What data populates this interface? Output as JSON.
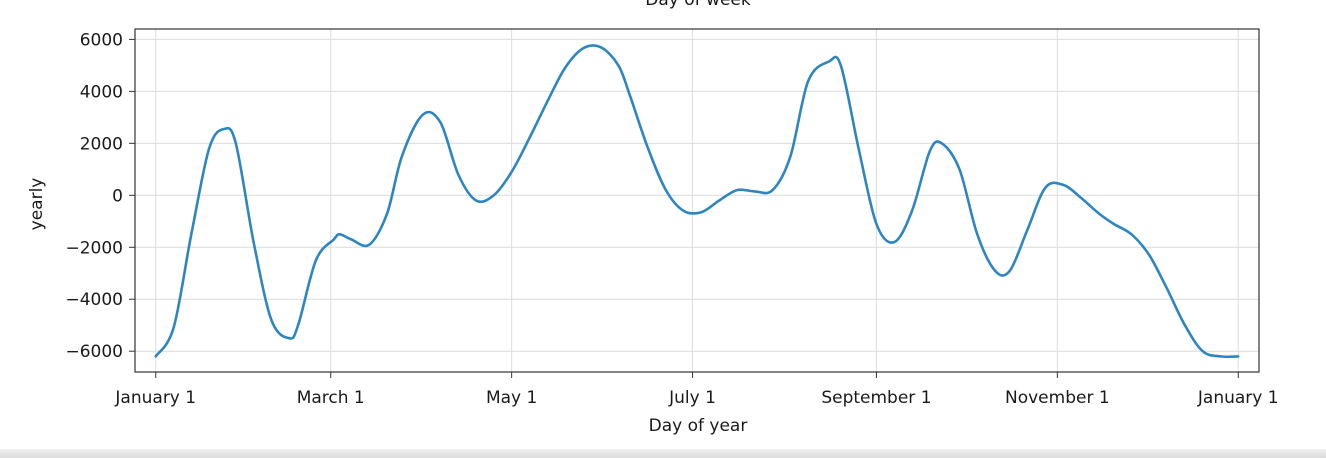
{
  "chart_data": {
    "type": "line",
    "title": "",
    "top_clipped_label": "Day of week",
    "xlabel": "Day of year",
    "ylabel": "yearly",
    "x_unit": "day of year",
    "xlim": [
      -7,
      372
    ],
    "ylim": [
      -6800,
      6400
    ],
    "grid": true,
    "x_ticks": [
      {
        "value": 0,
        "label": "January 1"
      },
      {
        "value": 59,
        "label": "March 1"
      },
      {
        "value": 120,
        "label": "May 1"
      },
      {
        "value": 181,
        "label": "July 1"
      },
      {
        "value": 243,
        "label": "September 1"
      },
      {
        "value": 304,
        "label": "November 1"
      },
      {
        "value": 365,
        "label": "January 1"
      }
    ],
    "y_ticks": [
      {
        "value": 6000,
        "label": "6000"
      },
      {
        "value": 4000,
        "label": "4000"
      },
      {
        "value": 2000,
        "label": "2000"
      },
      {
        "value": 0,
        "label": "0"
      },
      {
        "value": -2000,
        "label": "−2000"
      },
      {
        "value": -4000,
        "label": "−4000"
      },
      {
        "value": -6000,
        "label": "−6000"
      }
    ],
    "series": [
      {
        "color": "#2e86c1",
        "x": [
          0,
          6,
          12,
          18,
          23,
          27,
          33,
          39,
          45,
          48,
          54,
          60,
          62,
          66,
          72,
          78,
          83,
          90,
          96,
          102,
          108,
          114,
          120,
          126,
          132,
          138,
          144,
          150,
          156,
          160,
          166,
          172,
          178,
          184,
          190,
          196,
          202,
          208,
          214,
          220,
          227,
          231,
          237,
          243,
          249,
          255,
          261,
          265,
          271,
          277,
          283,
          288,
          294,
          300,
          306,
          312,
          318,
          323,
          329,
          335,
          341,
          347,
          353,
          359,
          365
        ],
        "values": [
          -6200,
          -5100,
          -1500,
          1800,
          2550,
          2000,
          -1800,
          -4800,
          -5500,
          -5000,
          -2500,
          -1700,
          -1500,
          -1700,
          -1900,
          -700,
          1500,
          3100,
          2800,
          800,
          -200,
          0,
          900,
          2200,
          3600,
          4900,
          5650,
          5700,
          5000,
          3800,
          1800,
          200,
          -600,
          -650,
          -200,
          200,
          150,
          200,
          1500,
          4400,
          5150,
          5000,
          1800,
          -1100,
          -1800,
          -600,
          1700,
          2000,
          1000,
          -1500,
          -2900,
          -2900,
          -1300,
          300,
          400,
          -100,
          -700,
          -1100,
          -1500,
          -2300,
          -3600,
          -5000,
          -6000,
          -6200,
          -6200
        ]
      }
    ]
  }
}
